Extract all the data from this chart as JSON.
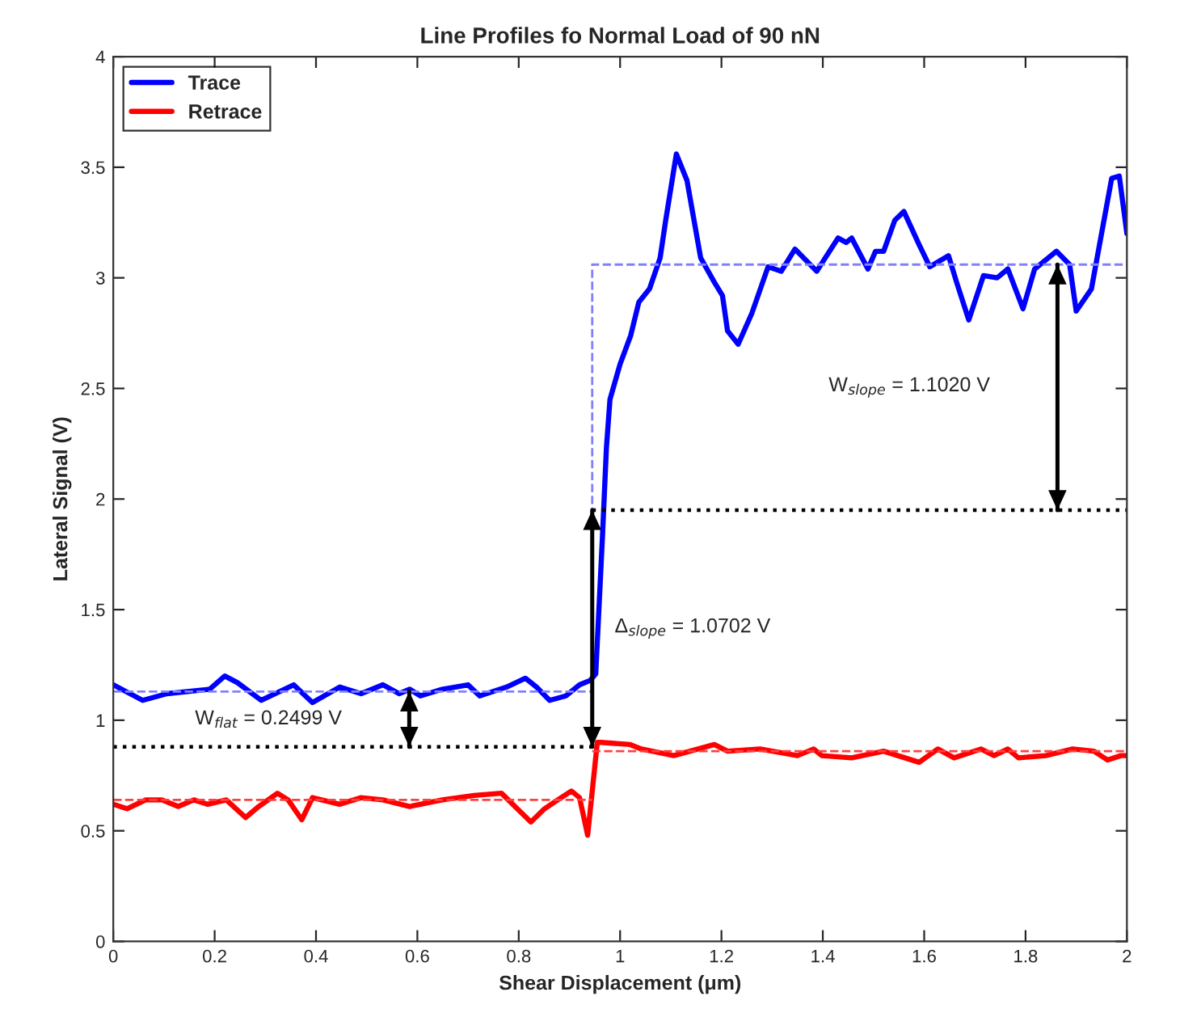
{
  "chart_data": {
    "type": "line",
    "title": "Line Profiles fo Normal Load of 90 nN",
    "xlabel": "Shear Displacement (μm)",
    "ylabel": "Lateral Signal (V)",
    "xlim": [
      0,
      2
    ],
    "ylim": [
      0,
      4
    ],
    "xticks": [
      0,
      {
        "value": 0.2,
        "label": "0.2"
      },
      {
        "value": 0.4,
        "label": "0.4"
      },
      {
        "value": 0.6,
        "label": "0.6"
      },
      {
        "value": 0.8,
        "label": "0.8"
      },
      1,
      {
        "value": 1.2,
        "label": "1.2"
      },
      {
        "value": 1.4,
        "label": "1.4"
      },
      {
        "value": 1.6,
        "label": "1.6"
      },
      {
        "value": 1.8,
        "label": "1.8"
      },
      2
    ],
    "yticks": [
      0,
      0.5,
      1,
      1.5,
      2,
      2.5,
      3,
      3.5,
      4
    ],
    "grid": false,
    "legend": "top left",
    "line_style": "solid",
    "marker": "none",
    "series": [
      {
        "name": "Trace",
        "color": "#0000ff",
        "x": [
          0,
          0.058,
          0.106,
          0.19,
          0.22,
          0.245,
          0.292,
          0.319,
          0.356,
          0.393,
          0.447,
          0.489,
          0.532,
          0.564,
          0.585,
          0.606,
          0.649,
          0.7,
          0.723,
          0.776,
          0.813,
          0.835,
          0.861,
          0.893,
          0.92,
          0.941,
          0.952,
          0.965,
          0.973,
          0.98,
          1.0,
          1.021,
          1.037,
          1.058,
          1.079,
          1.09,
          1.111,
          1.132,
          1.159,
          1.186,
          1.202,
          1.212,
          1.233,
          1.26,
          1.292,
          1.318,
          1.345,
          1.388,
          1.43,
          1.446,
          1.457,
          1.489,
          1.504,
          1.52,
          1.542,
          1.56,
          1.59,
          1.611,
          1.648,
          1.664,
          1.688,
          1.717,
          1.744,
          1.765,
          1.795,
          1.818,
          1.861,
          1.887,
          1.9,
          1.93,
          1.95,
          1.97,
          1.985,
          2.0
        ],
        "values": [
          1.16,
          1.09,
          1.12,
          1.14,
          1.2,
          1.17,
          1.09,
          1.12,
          1.16,
          1.08,
          1.15,
          1.12,
          1.16,
          1.12,
          1.14,
          1.11,
          1.14,
          1.16,
          1.11,
          1.15,
          1.19,
          1.15,
          1.09,
          1.11,
          1.16,
          1.18,
          1.21,
          1.82,
          2.23,
          2.45,
          2.61,
          2.74,
          2.89,
          2.95,
          3.09,
          3.26,
          3.56,
          3.44,
          3.09,
          2.98,
          2.92,
          2.76,
          2.7,
          2.84,
          3.05,
          3.03,
          3.13,
          3.03,
          3.18,
          3.16,
          3.18,
          3.04,
          3.12,
          3.12,
          3.26,
          3.3,
          3.15,
          3.05,
          3.1,
          2.98,
          2.81,
          3.01,
          3.0,
          3.04,
          2.86,
          3.04,
          3.12,
          3.06,
          2.85,
          2.95,
          3.2,
          3.45,
          3.46,
          3.2
        ]
      },
      {
        "name": "Retrace",
        "color": "#ff0000",
        "x": [
          0,
          0.027,
          0.064,
          0.096,
          0.128,
          0.159,
          0.186,
          0.223,
          0.261,
          0.287,
          0.324,
          0.345,
          0.372,
          0.393,
          0.447,
          0.489,
          0.532,
          0.585,
          0.649,
          0.712,
          0.766,
          0.797,
          0.824,
          0.851,
          0.877,
          0.904,
          0.92,
          0.936,
          0.946,
          0.955,
          0.962,
          1.02,
          1.042,
          1.106,
          1.186,
          1.212,
          1.276,
          1.35,
          1.382,
          1.398,
          1.457,
          1.52,
          1.59,
          1.627,
          1.659,
          1.712,
          1.738,
          1.765,
          1.786,
          1.84,
          1.893,
          1.935,
          1.962,
          1.988,
          2.0
        ],
        "values": [
          0.62,
          0.6,
          0.64,
          0.64,
          0.61,
          0.64,
          0.62,
          0.64,
          0.56,
          0.61,
          0.67,
          0.64,
          0.55,
          0.65,
          0.62,
          0.65,
          0.64,
          0.61,
          0.64,
          0.66,
          0.67,
          0.6,
          0.54,
          0.6,
          0.64,
          0.68,
          0.65,
          0.48,
          0.7,
          0.9,
          0.9,
          0.89,
          0.87,
          0.84,
          0.89,
          0.86,
          0.87,
          0.84,
          0.87,
          0.84,
          0.83,
          0.86,
          0.81,
          0.87,
          0.83,
          0.87,
          0.84,
          0.87,
          0.83,
          0.84,
          0.87,
          0.86,
          0.82,
          0.84,
          0.84
        ]
      },
      {
        "color": "#8080ff",
        "line_style": "dashed",
        "x": [
          0,
          0.945,
          0.945,
          2
        ],
        "values": [
          1.13,
          1.13,
          3.06,
          3.06
        ]
      },
      {
        "color": "#ff4040",
        "line_style": "dashed",
        "x": [
          0,
          0.945
        ],
        "values": [
          0.64,
          0.64
        ]
      },
      {
        "color": "#ff4040",
        "line_style": "dashed",
        "x": [
          0.945,
          2
        ],
        "values": [
          0.86,
          0.86
        ]
      },
      {
        "color": "#000000",
        "line_style": "dotted",
        "x": [
          0,
          0.945
        ],
        "values": [
          0.88,
          0.88
        ]
      },
      {
        "color": "#000000",
        "line_style": "dotted",
        "x": [
          0.945,
          2
        ],
        "values": [
          1.95,
          1.95
        ]
      },
      {
        "color": "#000000",
        "x": [
          0.584,
          0.584
        ],
        "values": [
          0.88,
          1.13
        ]
      },
      {
        "color": "#000000",
        "x": [
          0.945,
          0.945
        ],
        "values": [
          0.88,
          1.95
        ]
      },
      {
        "color": "#000000",
        "x": [
          1.863,
          1.863
        ],
        "values": [
          1.95,
          3.06
        ]
      }
    ],
    "annotations": [
      "W$_{flat}$ = 0.2499 V",
      "Δ$_{slope}$ = 1.0702 V",
      "W$_{slope}$ = 1.1020 V"
    ]
  }
}
